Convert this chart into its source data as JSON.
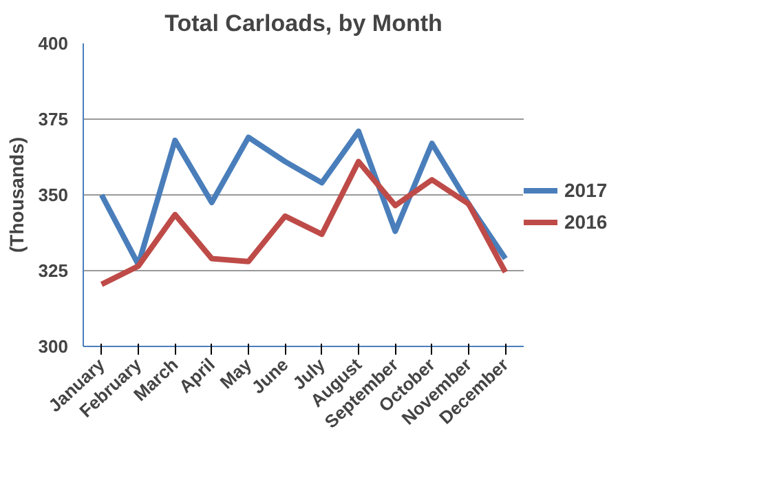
{
  "chart_data": {
    "type": "line",
    "title": "Total Carloads, by Month",
    "ylabel": "(Thousands)",
    "categories": [
      "January",
      "February",
      "March",
      "April",
      "May",
      "June",
      "July",
      "August",
      "September",
      "October",
      "November",
      "December"
    ],
    "series": [
      {
        "name": "2017",
        "color": "#4a7ebb",
        "values": [
          350,
          327,
          368,
          347.5,
          369,
          361,
          354,
          371,
          338,
          367,
          347,
          329
        ]
      },
      {
        "name": "2016",
        "color": "#be4b48",
        "values": [
          320.5,
          326.5,
          343.5,
          329,
          328,
          343,
          337,
          361,
          346.5,
          355,
          347,
          324.5
        ]
      }
    ],
    "ylim": [
      300,
      400
    ],
    "yticks": [
      300,
      325,
      350,
      375,
      400
    ],
    "grid": "y",
    "legend": "right",
    "marker": "none",
    "line_style": "solid"
  }
}
